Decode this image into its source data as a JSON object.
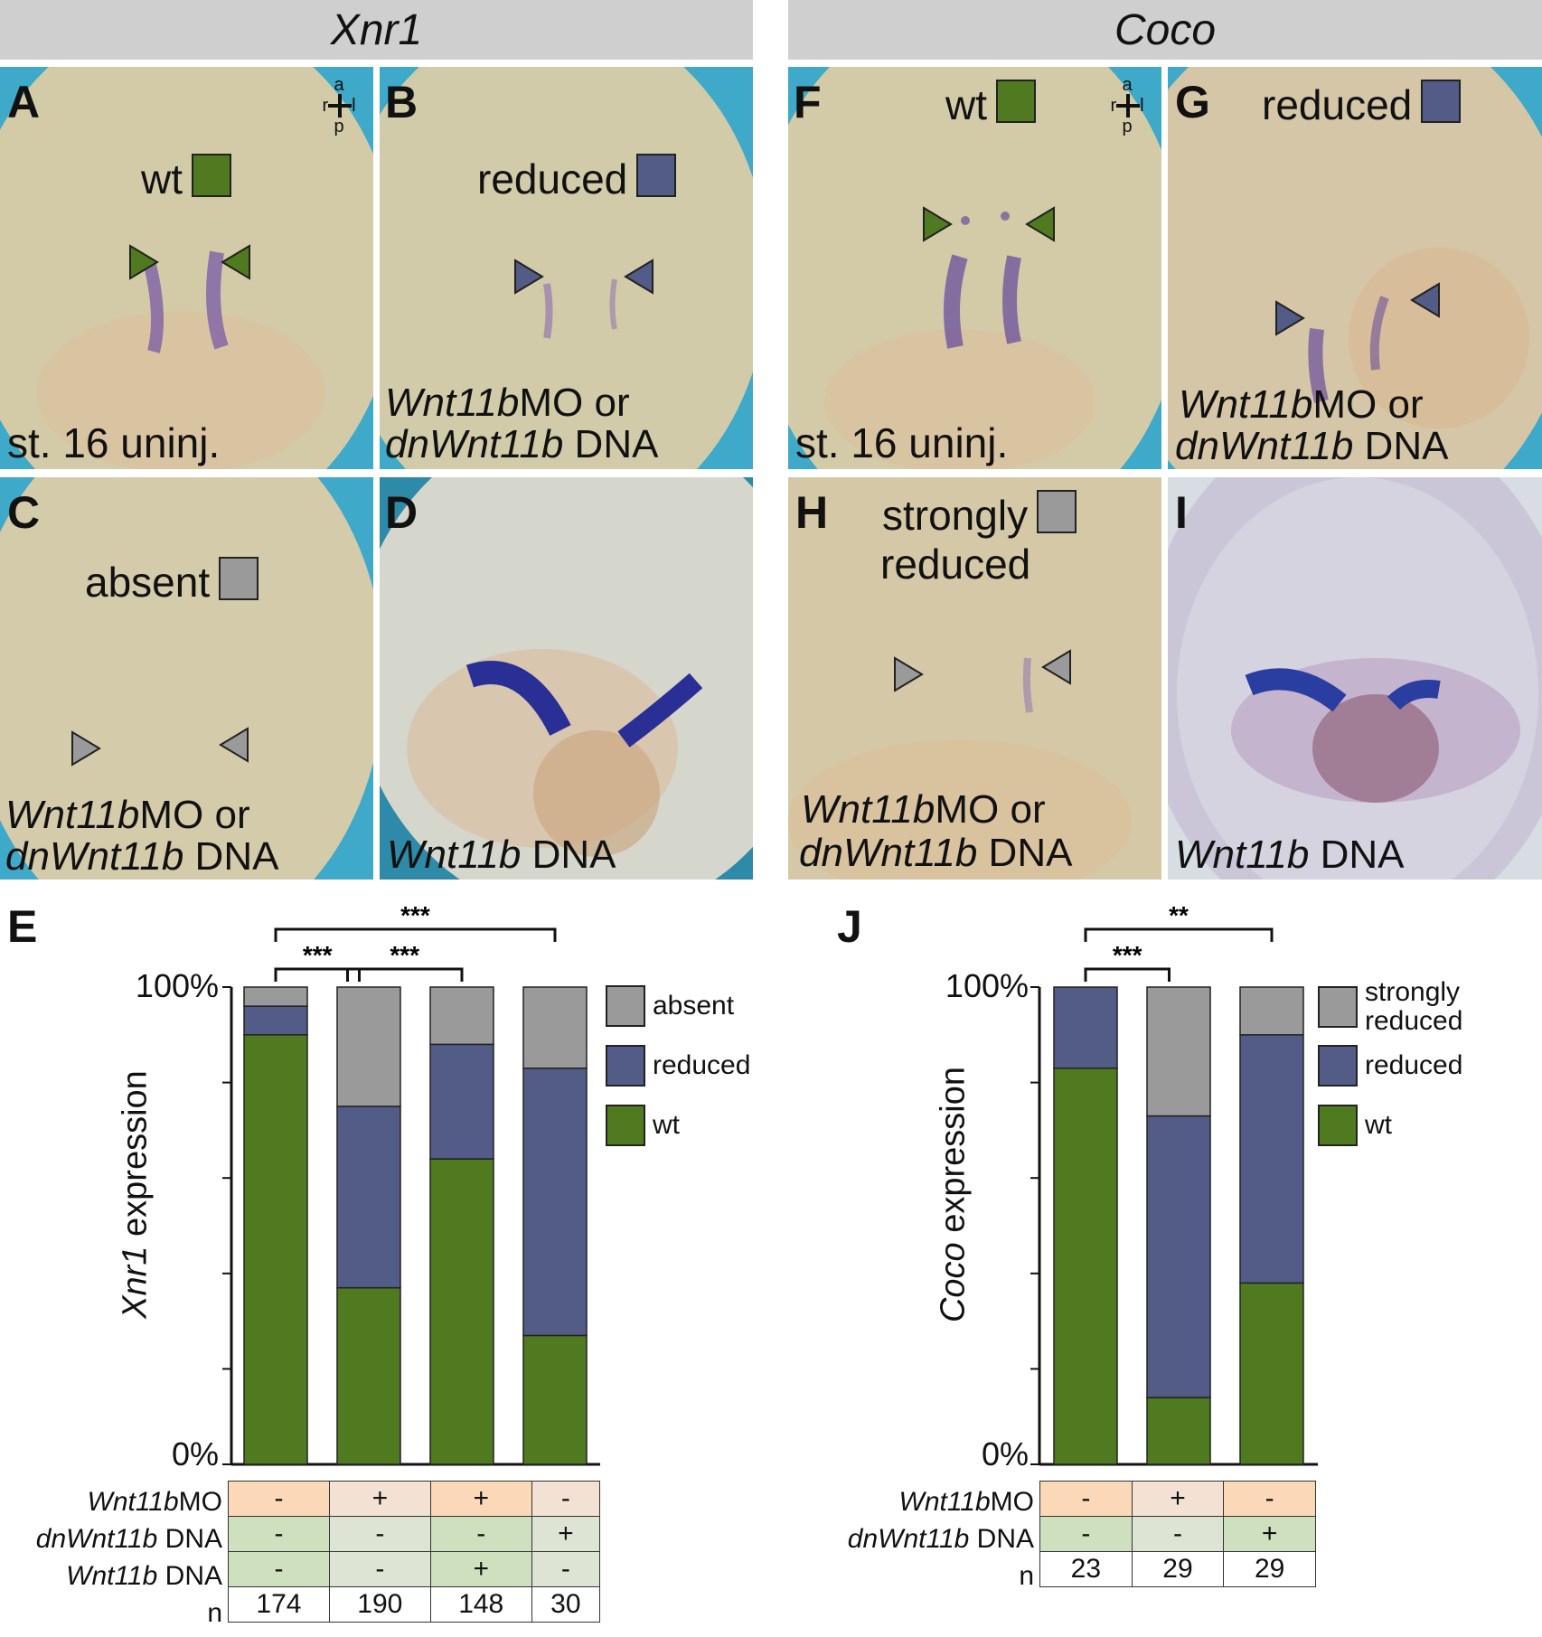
{
  "headers": {
    "left": "Xnr1",
    "right": "Coco"
  },
  "orientation": {
    "a": "a",
    "p": "p",
    "r": "r",
    "l": "l"
  },
  "panels": {
    "A": {
      "label": "A",
      "tag": "wt",
      "stage": "st. 16 uninj."
    },
    "B": {
      "label": "B",
      "tag": "reduced",
      "cond1_it": "Wnt11b",
      "cond1_rest": "MO or",
      "cond2_it": "dnWnt11b",
      "cond2_rest": " DNA"
    },
    "C": {
      "label": "C",
      "tag": "absent",
      "cond1_it": "Wnt11b",
      "cond1_rest": "MO or",
      "cond2_it": "dnWnt11b",
      "cond2_rest": " DNA"
    },
    "D": {
      "label": "D",
      "cond_it": "Wnt11b",
      "cond_rest": " DNA"
    },
    "F": {
      "label": "F",
      "tag": "wt",
      "stage": "st. 16 uninj."
    },
    "G": {
      "label": "G",
      "tag": "reduced",
      "cond1_it": "Wnt11b",
      "cond1_rest": "MO or",
      "cond2_it": "dnWnt11b",
      "cond2_rest": " DNA"
    },
    "H": {
      "label": "H",
      "tag1": "strongly",
      "tag2": "reduced",
      "cond1_it": "Wnt11b",
      "cond1_rest": "MO or",
      "cond2_it": "dnWnt11b",
      "cond2_rest": " DNA"
    },
    "I": {
      "label": "I",
      "cond_it": "Wnt11b",
      "cond_rest": " DNA"
    }
  },
  "colors": {
    "wt": "#4f7a1f",
    "reduced": "#535c87",
    "absent": "#9a9a9a",
    "cyan_bg": "#3ea9c9",
    "embryo": "#d3cba7",
    "stain": "#6a4f9c",
    "cell_orange": "#fbd9b8",
    "cell_pale": "#f3e2d3",
    "cell_green": "#cfe0bf",
    "cell_pale_green": "#dde4d3"
  },
  "chart_data": [
    {
      "type": "bar",
      "stacked": true,
      "label": "E",
      "ylabel_it": "Xnr1",
      "ylabel_rest": " expression",
      "yticks": [
        "100%",
        "0%"
      ],
      "ylim": [
        0,
        100
      ],
      "categories": [
        "1",
        "2",
        "3",
        "4"
      ],
      "series": [
        {
          "name": "wt",
          "values": [
            90,
            37,
            64,
            27
          ]
        },
        {
          "name": "reduced",
          "values": [
            6,
            38,
            24,
            56
          ]
        },
        {
          "name": "absent",
          "values": [
            4,
            25,
            12,
            17
          ]
        }
      ],
      "legend": [
        "absent",
        "reduced",
        "wt"
      ],
      "significance": [
        {
          "from": 0,
          "to": 1,
          "text": "***",
          "level": 1
        },
        {
          "from": 1,
          "to": 2,
          "text": "***",
          "level": 1
        },
        {
          "from": 0,
          "to": 3,
          "text": "***",
          "level": 2
        }
      ],
      "table": {
        "rows": [
          {
            "label_it": "Wnt11b",
            "label_rest": "MO",
            "values": [
              "-",
              "+",
              "+",
              "-"
            ],
            "colors": [
              "cell_orange",
              "cell_pale",
              "cell_orange",
              "cell_pale"
            ]
          },
          {
            "label_it": "dnWnt11b",
            "label_rest": " DNA",
            "values": [
              "-",
              "-",
              "-",
              "+"
            ],
            "colors": [
              "cell_green",
              "cell_pale_green",
              "cell_green",
              "cell_pale_green"
            ]
          },
          {
            "label_it": "Wnt11b",
            "label_rest": " DNA",
            "values": [
              "-",
              "-",
              "+",
              "-"
            ],
            "colors": [
              "cell_green",
              "cell_pale_green",
              "cell_green",
              "cell_pale_green"
            ]
          }
        ],
        "n_label": "n",
        "n": [
          "174",
          "190",
          "148",
          "30"
        ]
      }
    },
    {
      "type": "bar",
      "stacked": true,
      "label": "J",
      "ylabel_it": "Coco",
      "ylabel_rest": " expression",
      "yticks": [
        "100%",
        "0%"
      ],
      "ylim": [
        0,
        100
      ],
      "categories": [
        "1",
        "2",
        "3"
      ],
      "series": [
        {
          "name": "wt",
          "values": [
            83,
            14,
            38
          ]
        },
        {
          "name": "reduced",
          "values": [
            17,
            59,
            52
          ]
        },
        {
          "name": "strongly reduced",
          "values": [
            0,
            27,
            10
          ]
        }
      ],
      "legend": [
        "strongly reduced",
        "reduced",
        "wt"
      ],
      "significance": [
        {
          "from": 0,
          "to": 1,
          "text": "***",
          "level": 1
        },
        {
          "from": 0,
          "to": 2,
          "text": "**",
          "level": 2
        }
      ],
      "table": {
        "rows": [
          {
            "label_it": "Wnt11b",
            "label_rest": "MO",
            "values": [
              "-",
              "+",
              "-"
            ],
            "colors": [
              "cell_orange",
              "cell_pale",
              "cell_orange"
            ]
          },
          {
            "label_it": "dnWnt11b",
            "label_rest": " DNA",
            "values": [
              "-",
              "-",
              "+"
            ],
            "colors": [
              "cell_green",
              "cell_pale_green",
              "cell_green"
            ]
          }
        ],
        "n_label": "n",
        "n": [
          "23",
          "29",
          "29"
        ]
      }
    }
  ]
}
